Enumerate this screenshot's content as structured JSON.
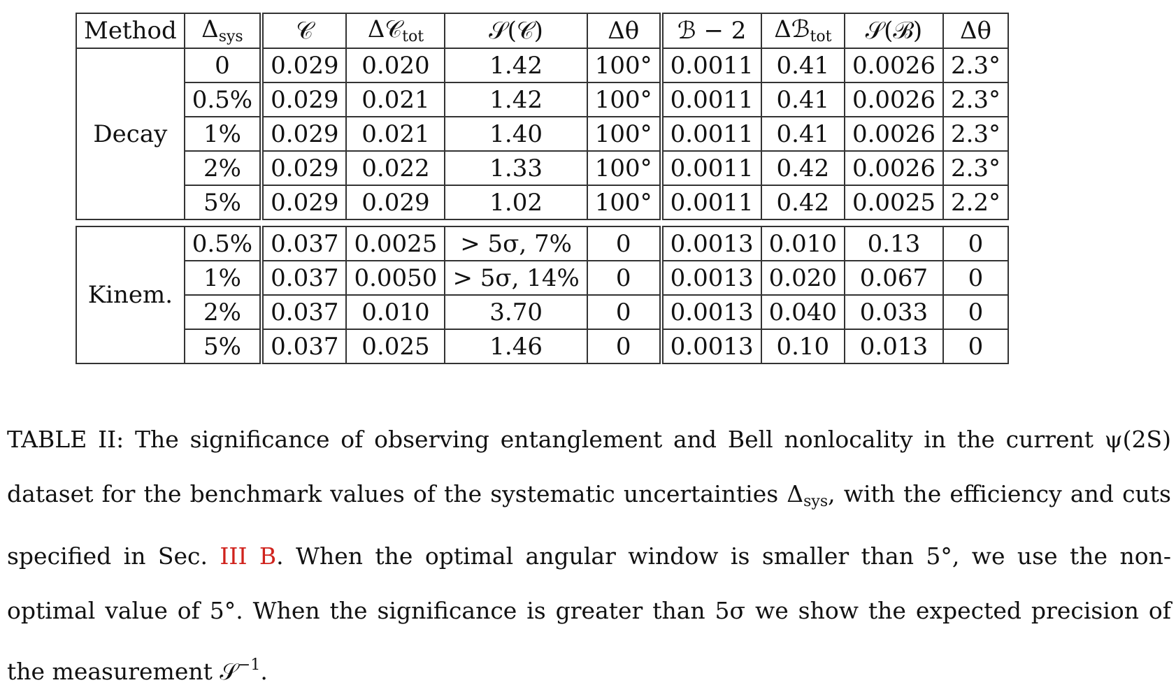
{
  "table": {
    "headers": [
      "Method",
      "Δsys",
      "𝒞",
      "Δ𝒞tot",
      "𝒮(𝒞)",
      "Δθ",
      "ℬ − 2",
      "Δℬtot",
      "𝒮(ℬ)",
      "Δθ"
    ],
    "groups": [
      {
        "method": "Decay",
        "rows": [
          [
            "0",
            "0.029",
            "0.020",
            "1.42",
            "100°",
            "0.0011",
            "0.41",
            "0.0026",
            "2.3°"
          ],
          [
            "0.5%",
            "0.029",
            "0.021",
            "1.42",
            "100°",
            "0.0011",
            "0.41",
            "0.0026",
            "2.3°"
          ],
          [
            "1%",
            "0.029",
            "0.021",
            "1.40",
            "100°",
            "0.0011",
            "0.41",
            "0.0026",
            "2.3°"
          ],
          [
            "2%",
            "0.029",
            "0.022",
            "1.33",
            "100°",
            "0.0011",
            "0.42",
            "0.0026",
            "2.3°"
          ],
          [
            "5%",
            "0.029",
            "0.029",
            "1.02",
            "100°",
            "0.0011",
            "0.42",
            "0.0025",
            "2.2°"
          ]
        ]
      },
      {
        "method": "Kinem.",
        "rows": [
          [
            "0.5%",
            "0.037",
            "0.0025",
            "> 5σ, 7%",
            "0",
            "0.0013",
            "0.010",
            "0.13",
            "0"
          ],
          [
            "1%",
            "0.037",
            "0.0050",
            "> 5σ, 14%",
            "0",
            "0.0013",
            "0.020",
            "0.067",
            "0"
          ],
          [
            "2%",
            "0.037",
            "0.010",
            "3.70",
            "0",
            "0.0013",
            "0.040",
            "0.033",
            "0"
          ],
          [
            "5%",
            "0.037",
            "0.025",
            "1.46",
            "0",
            "0.0013",
            "0.10",
            "0.013",
            "0"
          ]
        ]
      }
    ]
  },
  "caption": {
    "part1": "TABLE II: The significance of observing entanglement and Bell nonlocality in the current ψ(2S) dataset for the benchmark values of the systematic uncertainties Δ",
    "part1_sub": "sys",
    "part2": ", with the efficiency and cuts specified in Sec. ",
    "ref": "III B",
    "part3": ". When the optimal angular window is smaller than 5°, we use the non-optimal value of 5°. When the significance is greater than 5σ we show the expected precision of the measurement 𝒮",
    "part3_sup": "−1",
    "part4": "."
  }
}
